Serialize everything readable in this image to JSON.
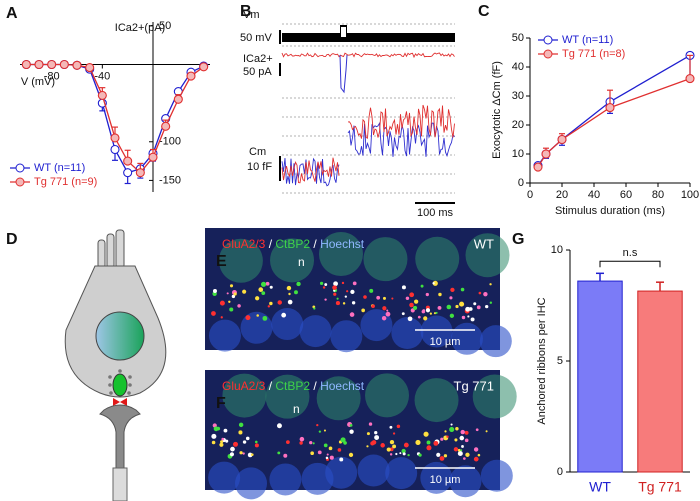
{
  "panel_labels": [
    "A",
    "B",
    "C",
    "D",
    "E",
    "F",
    "G"
  ],
  "chart_data": [
    {
      "type": "line",
      "xlabel": "V (mV)",
      "ylabel": "ICa2+(pA)",
      "x": [
        -100,
        -90,
        -80,
        -70,
        -60,
        -50,
        -40,
        -30,
        -20,
        -10,
        0,
        10,
        20,
        30,
        40
      ],
      "xlim": [
        -105,
        45
      ],
      "xticks": [
        -80,
        -40
      ],
      "ylim": [
        -165,
        55
      ],
      "yticks": [
        50,
        -100,
        -150
      ],
      "legend": "lower left",
      "series": [
        {
          "name": "WT (n=11)",
          "color": "#1f1fd0",
          "fill": "#ffffff",
          "values": [
            0,
            0,
            0,
            0,
            -1,
            -6,
            -50,
            -110,
            -140,
            -135,
            -115,
            -70,
            -35,
            -10,
            -2
          ],
          "errors": [
            2,
            2,
            2,
            2,
            2,
            3,
            10,
            14,
            14,
            12,
            10,
            8,
            6,
            4,
            2
          ]
        },
        {
          "name": "Tg 771 (n=9)",
          "color": "#e03030",
          "fill": "#f4b8b8",
          "values": [
            0,
            0,
            0,
            0,
            -1,
            -4,
            -40,
            -95,
            -125,
            -140,
            -120,
            -80,
            -45,
            -15,
            -3
          ],
          "errors": [
            2,
            2,
            2,
            2,
            2,
            3,
            10,
            14,
            14,
            12,
            10,
            8,
            6,
            4,
            2
          ]
        }
      ]
    },
    {
      "type": "line",
      "xlabel": "Stimulus duration (ms)",
      "ylabel": "Exocytotic ΔCm (fF)",
      "x": [
        5,
        10,
        20,
        50,
        100
      ],
      "xlim": [
        0,
        100
      ],
      "xticks": [
        0,
        20,
        40,
        60,
        80,
        100
      ],
      "ylim": [
        0,
        50
      ],
      "yticks": [
        0,
        10,
        20,
        30,
        40,
        50
      ],
      "legend": "upper left",
      "series": [
        {
          "name": "WT (n=11)",
          "color": "#1f1fd0",
          "fill": "#ffffff",
          "values": [
            6,
            10,
            15,
            28,
            44
          ],
          "errors": [
            1,
            1.5,
            2,
            4,
            7
          ]
        },
        {
          "name": "Tg 771 (n=8)",
          "color": "#e03030",
          "fill": "#f4b8b8",
          "values": [
            5.5,
            10,
            15,
            26,
            36
          ],
          "errors": [
            1,
            2,
            2,
            6,
            8
          ]
        }
      ]
    },
    {
      "type": "bar",
      "ylabel": "Anchored ribbons per IHC",
      "categories": [
        "WT",
        "Tg 771"
      ],
      "values": [
        8.6,
        8.15
      ],
      "errors": [
        0.35,
        0.4
      ],
      "colors": [
        "#7b7bf7",
        "#f77b7b"
      ],
      "edge_colors": [
        "#2020d0",
        "#d02020"
      ],
      "ylim": [
        0,
        10
      ],
      "yticks": [
        0,
        5,
        10
      ],
      "annotation": "n.s"
    }
  ],
  "panel_b": {
    "vm": "Vm",
    "vm_scale": "50 mV",
    "ica": "ICa2+",
    "ica_scale": "50 pA",
    "cm": "Cm",
    "cm_scale": "10 fF",
    "time_scale": "100 ms"
  },
  "panel_e": {
    "stains": [
      "GluA2/3",
      "CtBP2",
      "Hoechst"
    ],
    "separator": " / ",
    "genotype": "WT",
    "nucleus": "n",
    "scale": "10 µm"
  },
  "panel_f": {
    "stains": [
      "GluA2/3",
      "CtBP2",
      "Hoechst"
    ],
    "separator": " / ",
    "genotype": "Tg 771",
    "nucleus": "n",
    "scale": "10 µm"
  }
}
